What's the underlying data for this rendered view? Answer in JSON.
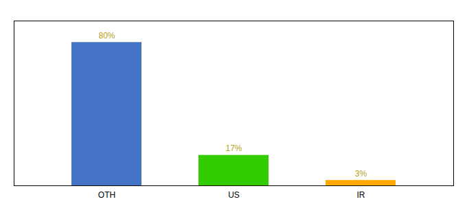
{
  "chart_data": {
    "type": "bar",
    "categories": [
      "OTH",
      "US",
      "IR"
    ],
    "values": [
      80,
      17,
      3
    ],
    "value_labels": [
      "80%",
      "17%",
      "3%"
    ],
    "data_labels": true,
    "colors": [
      "#4472c4",
      "#33cc00",
      "#ffaa00"
    ],
    "ylim": [
      0,
      92
    ],
    "tick_labels": "x"
  }
}
